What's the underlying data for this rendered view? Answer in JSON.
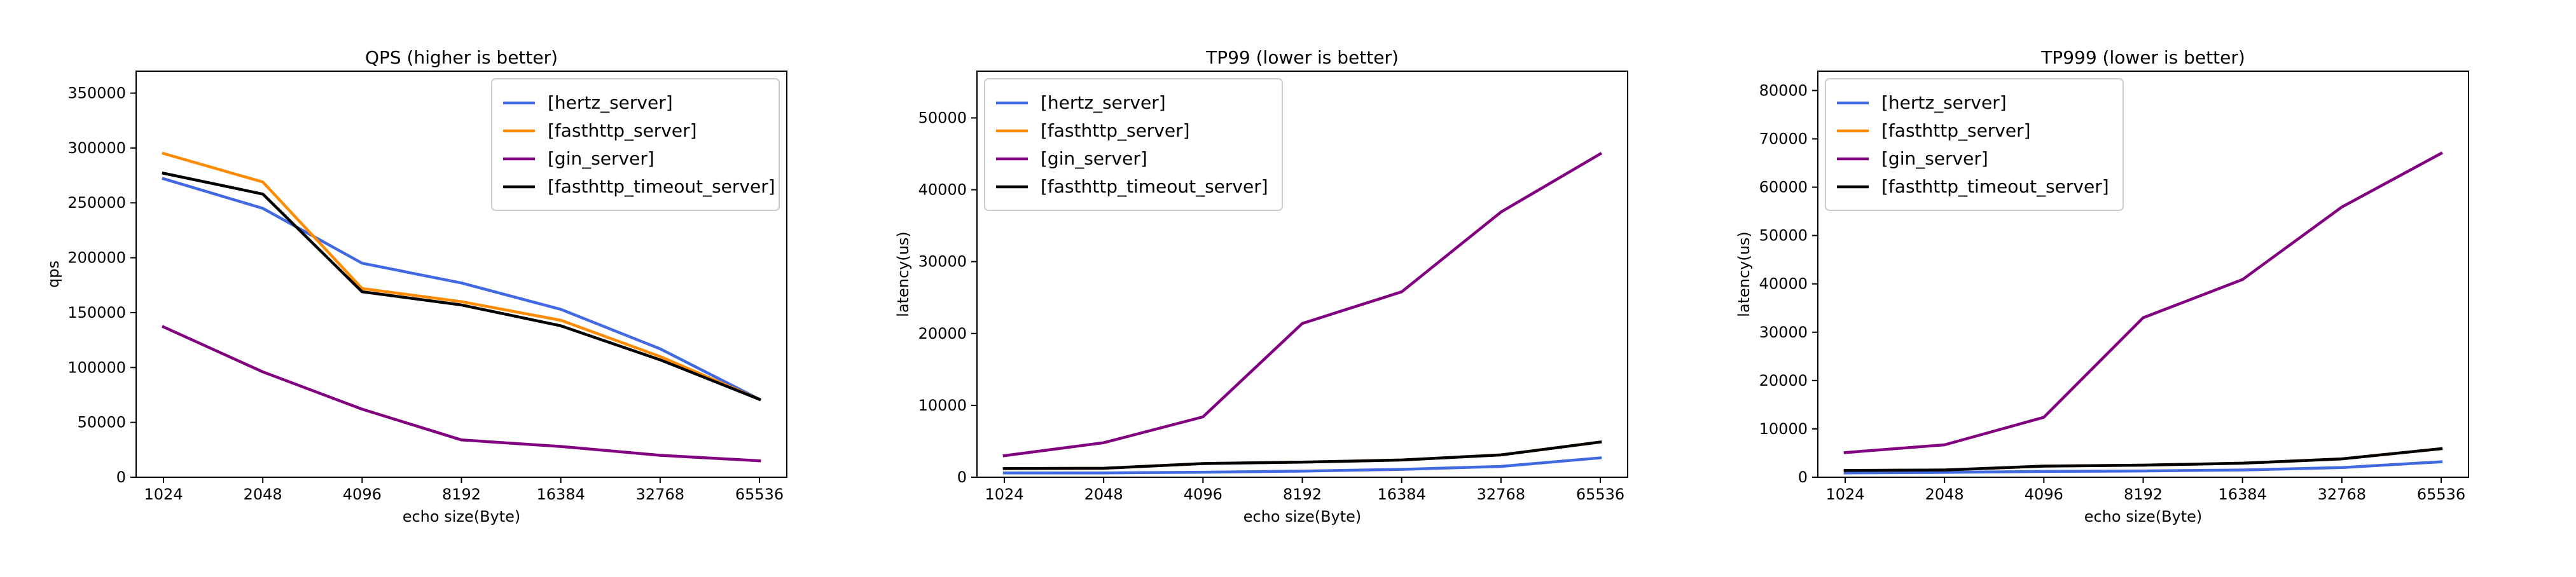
{
  "chart_data": [
    {
      "type": "line",
      "title": "QPS (higher is better)",
      "xlabel": "echo size(Byte)",
      "ylabel": "qps",
      "categories": [
        "1024",
        "2048",
        "4096",
        "8192",
        "16384",
        "32768",
        "65536"
      ],
      "ylim": [
        0,
        370000
      ],
      "yticks": [
        "0",
        "50000",
        "100000",
        "150000",
        "200000",
        "250000",
        "300000",
        "350000"
      ],
      "ytick_values": [
        0,
        50000,
        100000,
        150000,
        200000,
        250000,
        300000,
        350000
      ],
      "legend_position": "top-right",
      "grid": false,
      "series": [
        {
          "name": "[hertz_server]",
          "color": "#4169e1",
          "values": [
            272000,
            245000,
            195000,
            177000,
            153000,
            117000,
            71000
          ]
        },
        {
          "name": "[fasthttp_server]",
          "color": "#ff8c00",
          "values": [
            295000,
            269000,
            172000,
            160000,
            143000,
            110000,
            71000
          ]
        },
        {
          "name": "[gin_server]",
          "color": "#800080",
          "values": [
            137000,
            96000,
            62000,
            34000,
            28000,
            20000,
            15000
          ]
        },
        {
          "name": "[fasthttp_timeout_server]",
          "color": "#000000",
          "values": [
            277000,
            258000,
            169000,
            157000,
            138000,
            107000,
            71000
          ]
        }
      ]
    },
    {
      "type": "line",
      "title": "TP99 (lower is better)",
      "xlabel": "echo size(Byte)",
      "ylabel": "latency(us)",
      "categories": [
        "1024",
        "2048",
        "4096",
        "8192",
        "16384",
        "32768",
        "65536"
      ],
      "ylim": [
        0,
        56500
      ],
      "yticks": [
        "0",
        "10000",
        "20000",
        "30000",
        "40000",
        "50000"
      ],
      "ytick_values": [
        0,
        10000,
        20000,
        30000,
        40000,
        50000
      ],
      "legend_position": "top-left",
      "grid": false,
      "series": [
        {
          "name": "[hertz_server]",
          "color": "#4169e1",
          "values": [
            600,
            600,
            700,
            850,
            1100,
            1500,
            2700
          ]
        },
        {
          "name": "[fasthttp_server]",
          "color": "#ff8c00",
          "values": [
            1200,
            1250,
            1900,
            2100,
            2400,
            3100,
            4900
          ]
        },
        {
          "name": "[gin_server]",
          "color": "#800080",
          "values": [
            3000,
            4800,
            8400,
            21400,
            25800,
            36900,
            45000
          ]
        },
        {
          "name": "[fasthttp_timeout_server]",
          "color": "#000000",
          "values": [
            1200,
            1250,
            1900,
            2100,
            2400,
            3100,
            4900
          ]
        }
      ]
    },
    {
      "type": "line",
      "title": "TP999 (lower is better)",
      "xlabel": "echo size(Byte)",
      "ylabel": "latency(us)",
      "categories": [
        "1024",
        "2048",
        "4096",
        "8192",
        "16384",
        "32768",
        "65536"
      ],
      "ylim": [
        0,
        84000
      ],
      "yticks": [
        "0",
        "10000",
        "20000",
        "30000",
        "40000",
        "50000",
        "60000",
        "70000",
        "80000"
      ],
      "ytick_values": [
        0,
        10000,
        20000,
        30000,
        40000,
        50000,
        60000,
        70000,
        80000
      ],
      "legend_position": "top-left",
      "grid": false,
      "series": [
        {
          "name": "[hertz_server]",
          "color": "#4169e1",
          "values": [
            900,
            1000,
            1200,
            1300,
            1500,
            2000,
            3200
          ]
        },
        {
          "name": "[fasthttp_server]",
          "color": "#ff8c00",
          "values": [
            1400,
            1500,
            2300,
            2500,
            2900,
            3800,
            5900
          ]
        },
        {
          "name": "[gin_server]",
          "color": "#800080",
          "values": [
            5100,
            6700,
            12400,
            33000,
            40900,
            55900,
            67000
          ]
        },
        {
          "name": "[fasthttp_timeout_server]",
          "color": "#000000",
          "values": [
            1400,
            1500,
            2300,
            2500,
            2900,
            3800,
            5900
          ]
        }
      ]
    }
  ]
}
